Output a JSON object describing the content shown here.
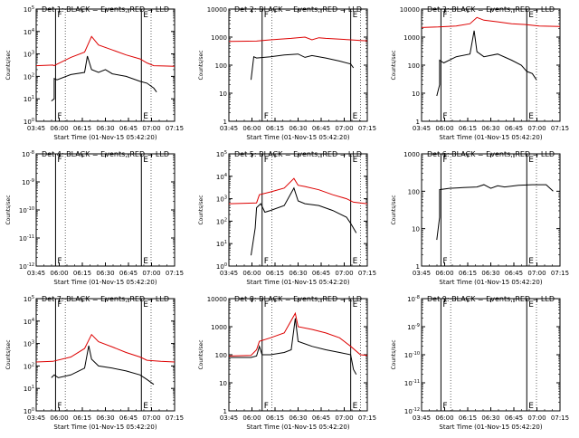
{
  "colors": {
    "events": "#000000",
    "lld": "#dd0000",
    "axis": "#000000"
  },
  "x_tick_labels": [
    "03:45",
    "06:00",
    "06:15",
    "06:30",
    "06:45",
    "07:00",
    "07:15"
  ],
  "xlabel": "Start Time (01-Nov-15 05:42:20)",
  "ylabel": "Counts/sec",
  "chart_data": [
    {
      "type": "line",
      "title": "Det 1: BLACK = Events, RED = LLD",
      "yscale": "log",
      "ylim": [
        1,
        100000
      ],
      "ytick_labels": [
        "10^0",
        "10^1",
        "10^2",
        "10^3",
        "10^4",
        "10^5"
      ],
      "markers": [
        {
          "label": "F",
          "x": 0.14
        },
        {
          "label": "E",
          "x": 0.76
        }
      ],
      "series": [
        {
          "name": "Events",
          "x": [
            0.11,
            0.13,
            0.13,
            0.15,
            0.25,
            0.35,
            0.37,
            0.4,
            0.45,
            0.5,
            0.55,
            0.65,
            0.75,
            0.8,
            0.85,
            0.87
          ],
          "y": [
            8,
            10,
            80,
            70,
            120,
            150,
            800,
            200,
            150,
            200,
            130,
            100,
            60,
            50,
            30,
            20
          ]
        },
        {
          "name": "LLD",
          "x": [
            0.0,
            0.12,
            0.13,
            0.15,
            0.25,
            0.35,
            0.4,
            0.45,
            0.55,
            0.65,
            0.75,
            0.8,
            0.85,
            0.92,
            1.0
          ],
          "y": [
            300,
            320,
            300,
            350,
            700,
            1200,
            6000,
            2500,
            1500,
            900,
            600,
            400,
            300,
            290,
            280
          ]
        }
      ]
    },
    {
      "type": "line",
      "title": "Det 2: BLACK = Events, RED = LLD",
      "yscale": "log",
      "ylim": [
        1,
        10000
      ],
      "ytick_labels": [
        "1",
        "10",
        "100",
        "1000",
        "10000"
      ],
      "markers": [
        {
          "label": "F",
          "x": 0.24
        },
        {
          "label": "E",
          "x": 0.88
        }
      ],
      "series": [
        {
          "name": "Events",
          "x": [
            0.16,
            0.18,
            0.2,
            0.3,
            0.4,
            0.5,
            0.55,
            0.6,
            0.7,
            0.8,
            0.88,
            0.9
          ],
          "y": [
            30,
            200,
            180,
            200,
            230,
            250,
            190,
            220,
            180,
            140,
            110,
            80
          ]
        },
        {
          "name": "LLD",
          "x": [
            0.0,
            0.2,
            0.3,
            0.45,
            0.55,
            0.6,
            0.65,
            0.7,
            0.8,
            0.88,
            0.95,
            1.0
          ],
          "y": [
            700,
            720,
            800,
            900,
            1000,
            800,
            950,
            900,
            850,
            800,
            760,
            740
          ]
        }
      ]
    },
    {
      "type": "line",
      "title": "Det 3: BLACK = Events, RED = LLD",
      "yscale": "log",
      "ylim": [
        1,
        10000
      ],
      "ytick_labels": [
        "1",
        "10",
        "100",
        "1000",
        "10000"
      ],
      "markers": [
        {
          "label": "F",
          "x": 0.14
        },
        {
          "label": "E",
          "x": 0.76
        }
      ],
      "series": [
        {
          "name": "Events",
          "x": [
            0.11,
            0.13,
            0.13,
            0.16,
            0.25,
            0.35,
            0.38,
            0.4,
            0.45,
            0.55,
            0.65,
            0.72,
            0.76,
            0.8,
            0.83
          ],
          "y": [
            8,
            20,
            150,
            120,
            200,
            250,
            1700,
            300,
            200,
            250,
            150,
            100,
            60,
            50,
            30
          ]
        },
        {
          "name": "LLD",
          "x": [
            0.0,
            0.12,
            0.25,
            0.35,
            0.4,
            0.45,
            0.55,
            0.65,
            0.75,
            0.85,
            1.0
          ],
          "y": [
            2200,
            2300,
            2500,
            3000,
            5000,
            4000,
            3500,
            3000,
            2800,
            2500,
            2400
          ]
        }
      ]
    },
    {
      "type": "line",
      "title": "Det 4: BLACK = Events, RED = LLD",
      "yscale": "log",
      "ylim": [
        1e-12,
        1e-08
      ],
      "ytick_labels": [
        "10^-12",
        "10^-11",
        "10^-10",
        "10^-9",
        "10^-8"
      ],
      "markers": [
        {
          "label": "F",
          "x": 0.14
        },
        {
          "label": "E",
          "x": 0.76
        }
      ],
      "series": []
    },
    {
      "type": "line",
      "title": "Det 5: BLACK = Events, RED = LLD",
      "yscale": "log",
      "ylim": [
        1,
        100000
      ],
      "ytick_labels": [
        "10^0",
        "10^1",
        "10^2",
        "10^3",
        "10^4",
        "10^5"
      ],
      "markers": [
        {
          "label": "F",
          "x": 0.24
        },
        {
          "label": "E",
          "x": 0.88
        }
      ],
      "series": [
        {
          "name": "Events",
          "x": [
            0.16,
            0.19,
            0.2,
            0.23,
            0.26,
            0.3,
            0.4,
            0.47,
            0.5,
            0.55,
            0.65,
            0.75,
            0.85,
            0.88,
            0.92
          ],
          "y": [
            3,
            50,
            400,
            600,
            250,
            300,
            500,
            3000,
            800,
            600,
            500,
            300,
            150,
            80,
            30
          ]
        },
        {
          "name": "LLD",
          "x": [
            0.0,
            0.2,
            0.22,
            0.3,
            0.4,
            0.47,
            0.5,
            0.55,
            0.65,
            0.75,
            0.85,
            0.9,
            1.0
          ],
          "y": [
            600,
            650,
            1500,
            2000,
            3000,
            8000,
            4000,
            3500,
            2500,
            1500,
            1000,
            700,
            600
          ]
        }
      ]
    },
    {
      "type": "line",
      "title": "Det 6: BLACK = Events, RED = LLD",
      "yscale": "log",
      "ylim": [
        1,
        1000
      ],
      "ytick_labels": [
        "1",
        "10",
        "100",
        "1000"
      ],
      "markers": [
        {
          "label": "F",
          "x": 0.14
        },
        {
          "label": "E",
          "x": 0.76
        }
      ],
      "series": [
        {
          "name": "Events",
          "x": [
            0.11,
            0.13,
            0.13,
            0.2,
            0.3,
            0.4,
            0.45,
            0.5,
            0.55,
            0.6,
            0.7,
            0.8,
            0.9,
            0.95
          ],
          "y": [
            5,
            20,
            110,
            120,
            125,
            130,
            150,
            120,
            140,
            130,
            145,
            150,
            150,
            100
          ]
        }
      ]
    },
    {
      "type": "line",
      "title": "Det 7: BLACK = Events, RED = LLD",
      "yscale": "log",
      "ylim": [
        1,
        100000
      ],
      "ytick_labels": [
        "10^0",
        "10^1",
        "10^2",
        "10^3",
        "10^4",
        "10^5"
      ],
      "markers": [
        {
          "label": "F",
          "x": 0.14
        },
        {
          "label": "E",
          "x": 0.76
        }
      ],
      "series": [
        {
          "name": "Events",
          "x": [
            0.11,
            0.13,
            0.16,
            0.25,
            0.35,
            0.38,
            0.4,
            0.45,
            0.55,
            0.65,
            0.75,
            0.8,
            0.85
          ],
          "y": [
            30,
            40,
            30,
            40,
            80,
            800,
            200,
            100,
            80,
            60,
            40,
            25,
            15
          ]
        },
        {
          "name": "LLD",
          "x": [
            0.0,
            0.12,
            0.25,
            0.35,
            0.4,
            0.45,
            0.55,
            0.65,
            0.75,
            0.8,
            0.9,
            1.0
          ],
          "y": [
            150,
            160,
            250,
            600,
            2500,
            1200,
            700,
            400,
            250,
            180,
            160,
            150
          ]
        }
      ]
    },
    {
      "type": "line",
      "title": "Det 8: BLACK = Events, RED = LLD",
      "yscale": "log",
      "ylim": [
        1,
        10000
      ],
      "ytick_labels": [
        "1",
        "10",
        "100",
        "1000",
        "10000"
      ],
      "markers": [
        {
          "label": "F",
          "x": 0.24
        },
        {
          "label": "E",
          "x": 0.88
        }
      ],
      "series": [
        {
          "name": "Events",
          "x": [
            0.0,
            0.16,
            0.2,
            0.22,
            0.24,
            0.3,
            0.4,
            0.45,
            0.48,
            0.5,
            0.6,
            0.7,
            0.8,
            0.88,
            0.9,
            0.92
          ],
          "y": [
            80,
            80,
            90,
            200,
            100,
            100,
            120,
            150,
            2000,
            300,
            200,
            150,
            120,
            100,
            30,
            20
          ]
        },
        {
          "name": "LLD",
          "x": [
            0.0,
            0.16,
            0.2,
            0.22,
            0.3,
            0.4,
            0.48,
            0.5,
            0.6,
            0.7,
            0.8,
            0.88,
            0.95,
            1.0
          ],
          "y": [
            90,
            95,
            150,
            300,
            400,
            600,
            3000,
            1000,
            800,
            600,
            400,
            200,
            100,
            95
          ]
        }
      ]
    },
    {
      "type": "line",
      "title": "Det 9: BLACK = Events, RED = LLD",
      "yscale": "log",
      "ylim": [
        1e-12,
        1e-08
      ],
      "ytick_labels": [
        "10^-12",
        "10^-11",
        "10^-10",
        "10^-9",
        "10^-8"
      ],
      "markers": [
        {
          "label": "F",
          "x": 0.14
        },
        {
          "label": "E",
          "x": 0.76
        }
      ],
      "series": []
    }
  ]
}
